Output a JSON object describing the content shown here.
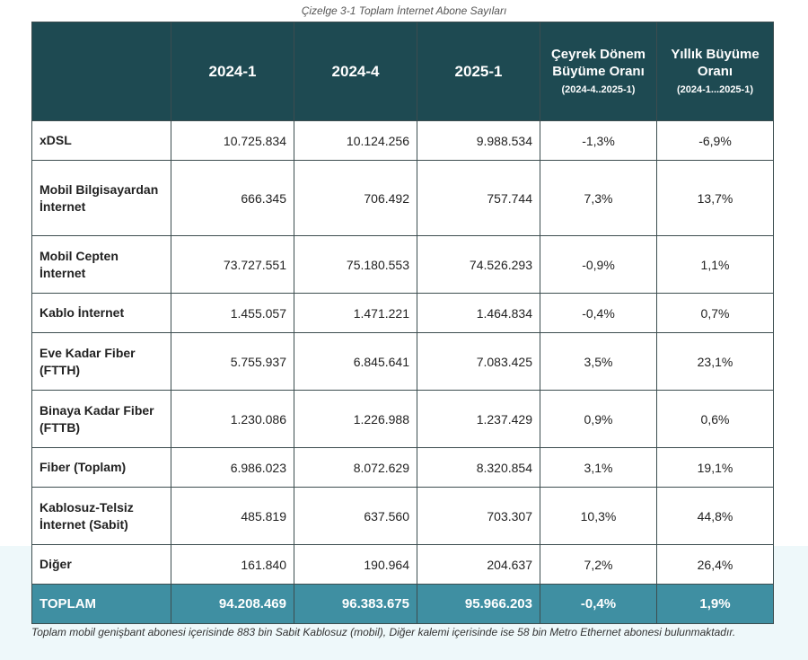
{
  "caption": "Çizelge 3-1 Toplam İnternet Abone Sayıları",
  "table": {
    "headers": {
      "col1": "2024-1",
      "col2": "2024-4",
      "col3": "2025-1",
      "col4_main": "Çeyrek Dönem Büyüme Oranı",
      "col4_sub": "(2024-4..2025-1)",
      "col5_main": "Yıllık Büyüme Oranı",
      "col5_sub": "(2024-1...2025-1)"
    },
    "rows": [
      {
        "label": "xDSL",
        "v1": "10.725.834",
        "v2": "10.124.256",
        "v3": "9.988.534",
        "q": "-1,3%",
        "y": "-6,9%"
      },
      {
        "label": "Mobil Bilgisayardan İnternet",
        "v1": "666.345",
        "v2": "706.492",
        "v3": "757.744",
        "q": "7,3%",
        "y": "13,7%"
      },
      {
        "label": "Mobil Cepten İnternet",
        "v1": "73.727.551",
        "v2": "75.180.553",
        "v3": "74.526.293",
        "q": "-0,9%",
        "y": "1,1%"
      },
      {
        "label": "Kablo İnternet",
        "v1": "1.455.057",
        "v2": "1.471.221",
        "v3": "1.464.834",
        "q": "-0,4%",
        "y": "0,7%"
      },
      {
        "label": "Eve Kadar Fiber (FTTH)",
        "v1": "5.755.937",
        "v2": "6.845.641",
        "v3": "7.083.425",
        "q": "3,5%",
        "y": "23,1%"
      },
      {
        "label": "Binaya Kadar Fiber (FTTB)",
        "v1": "1.230.086",
        "v2": "1.226.988",
        "v3": "1.237.429",
        "q": "0,9%",
        "y": "0,6%"
      },
      {
        "label": "Fiber (Toplam)",
        "v1": "6.986.023",
        "v2": "8.072.629",
        "v3": "8.320.854",
        "q": "3,1%",
        "y": "19,1%"
      },
      {
        "label": "Kablosuz-Telsiz İnternet (Sabit)",
        "v1": "485.819",
        "v2": "637.560",
        "v3": "703.307",
        "q": "10,3%",
        "y": "44,8%"
      },
      {
        "label": "Diğer",
        "v1": "161.840",
        "v2": "190.964",
        "v3": "204.637",
        "q": "7,2%",
        "y": "26,4%"
      }
    ],
    "total": {
      "label": "TOPLAM",
      "v1": "94.208.469",
      "v2": "96.383.675",
      "v3": "95.966.203",
      "q": "-0,4%",
      "y": "1,9%"
    }
  },
  "footnote": "Toplam mobil genişbant abonesi içerisinde 883 bin Sabit Kablosuz (mobil), Diğer kalemi içerisinde ise 58 bin Metro Ethernet abonesi bulunmaktadır.",
  "colors": {
    "header_bg": "#1e4a52",
    "total_bg": "#3f8fa2",
    "border": "#3c4d4f"
  }
}
